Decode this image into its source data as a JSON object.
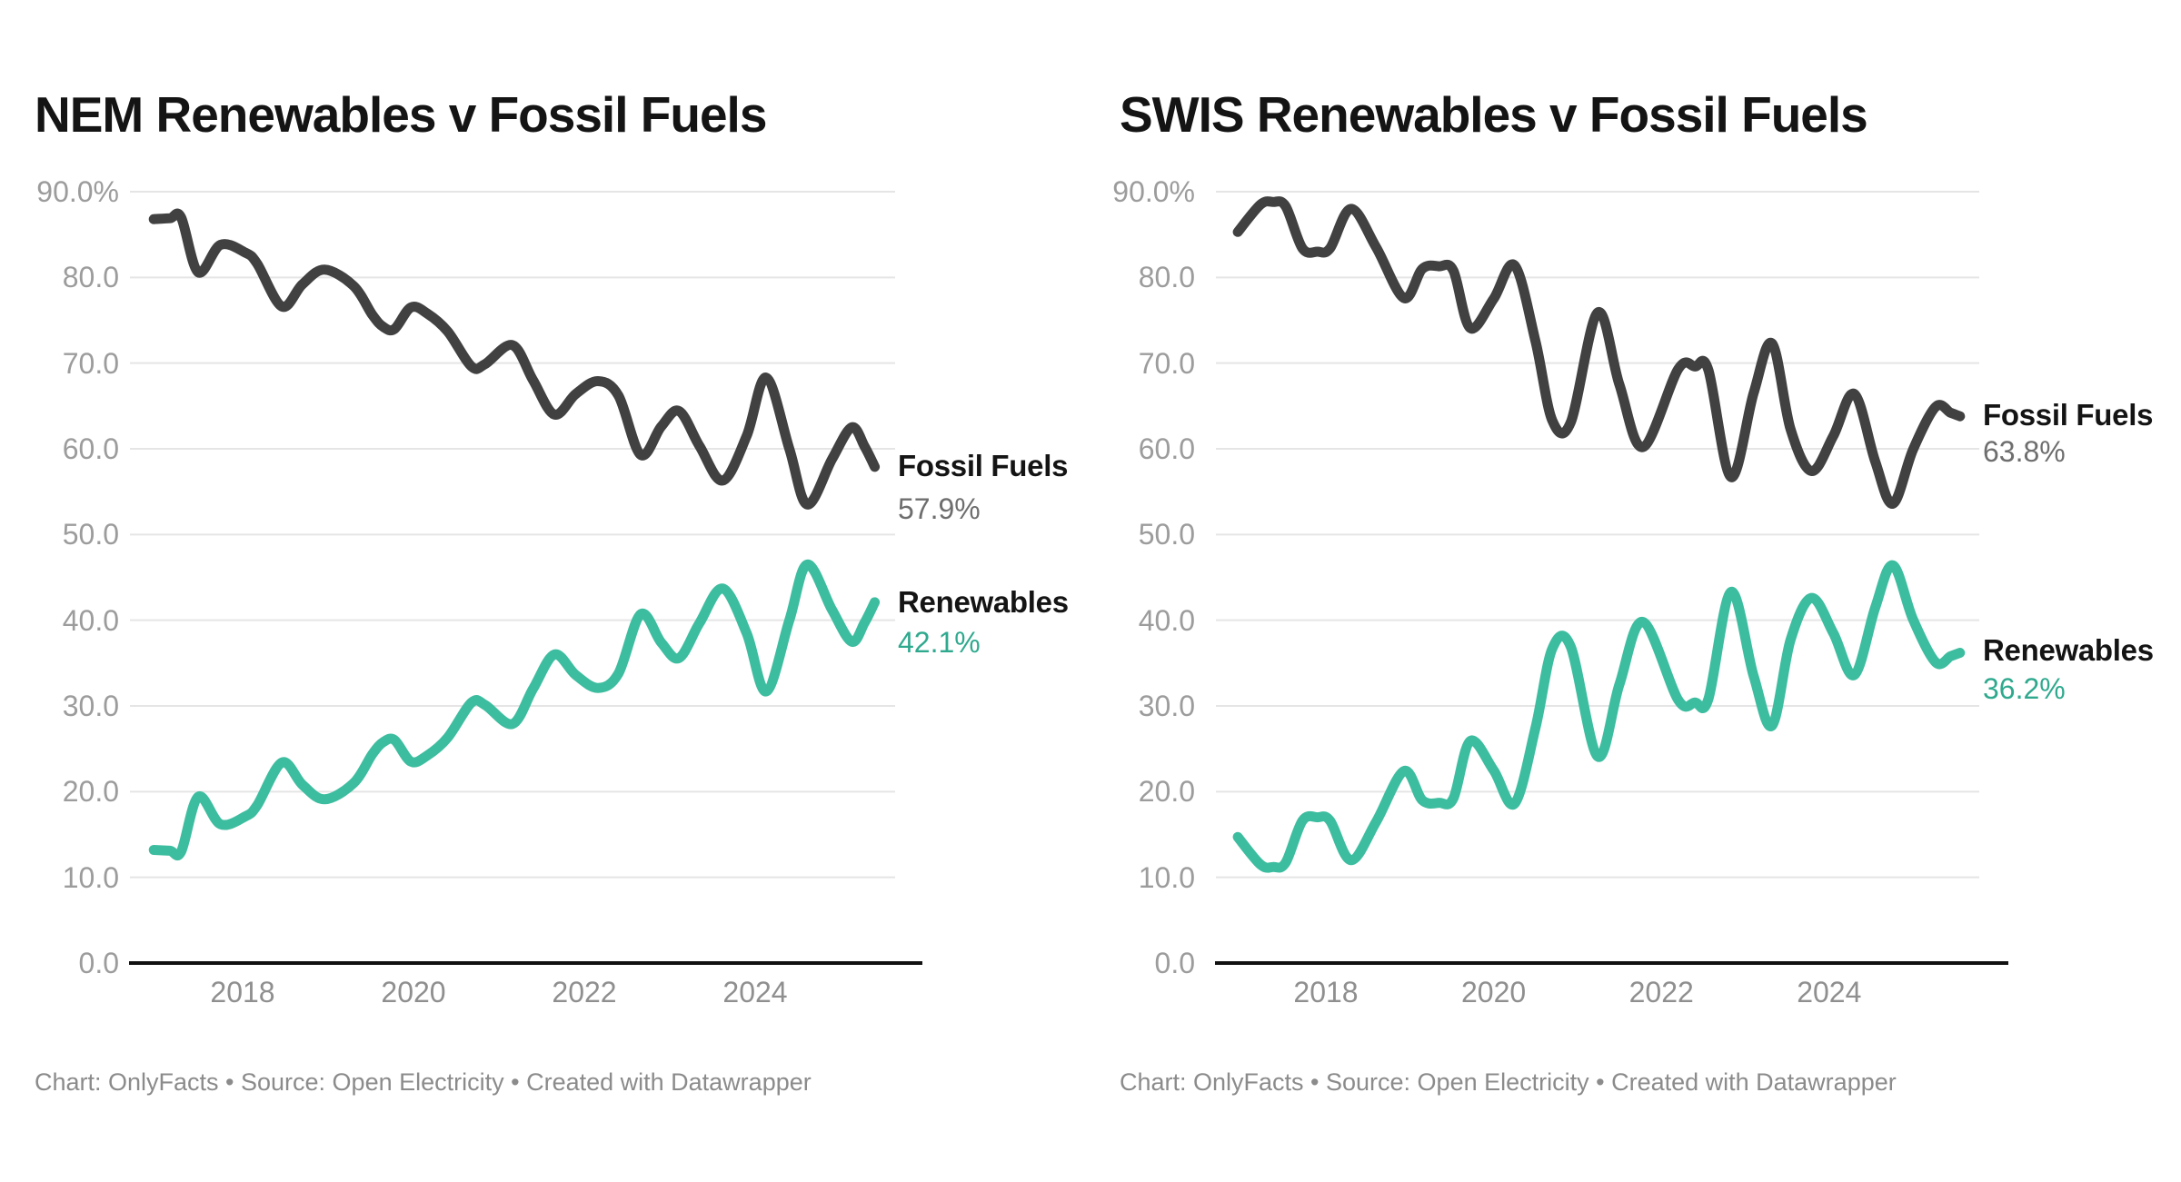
{
  "page": {
    "background": "#ffffff"
  },
  "colors": {
    "background": "#ffffff",
    "title_text": "#141414",
    "fossil_line": "#414141",
    "renewables_line": "#3dbd9f",
    "fossil_value_text": "#6e6e6e",
    "renewables_value_text": "#2fa98e",
    "series_name_text": "#141414",
    "grid_line": "#e5e5e5",
    "axis_line": "#111111",
    "y_tick_text": "#9c9c9c",
    "x_tick_text": "#8f8f8f",
    "footer_text": "#8b8b8b"
  },
  "charts": [
    {
      "id": "nem",
      "title": "NEM Renewables v Fossil Fuels",
      "footer": "Chart: OnlyFacts • Source: Open Electricity • Created with Datawrapper",
      "y_axis": {
        "tick_labels": [
          "90.0%",
          "80.0",
          "70.0",
          "60.0",
          "50.0",
          "40.0",
          "30.0",
          "20.0",
          "10.0",
          "0.0"
        ],
        "tick_values": [
          90,
          80,
          70,
          60,
          50,
          40,
          30,
          20,
          10,
          0
        ]
      },
      "x_axis": {
        "tick_labels": [
          "2018",
          "2020",
          "2022",
          "2024"
        ],
        "tick_years": [
          2018,
          2020,
          2022,
          2024
        ]
      },
      "series_labels": {
        "fossil": {
          "name": "Fossil Fuels",
          "value": "57.9%"
        },
        "renewables": {
          "name": "Renewables",
          "value": "42.1%"
        }
      }
    },
    {
      "id": "swis",
      "title": "SWIS Renewables v Fossil Fuels",
      "footer": "Chart: OnlyFacts • Source: Open Electricity • Created with Datawrapper",
      "y_axis": {
        "tick_labels": [
          "90.0%",
          "80.0",
          "70.0",
          "60.0",
          "50.0",
          "40.0",
          "30.0",
          "20.0",
          "10.0",
          "0.0"
        ],
        "tick_values": [
          90,
          80,
          70,
          60,
          50,
          40,
          30,
          20,
          10,
          0
        ]
      },
      "x_axis": {
        "tick_labels": [
          "2018",
          "2020",
          "2022",
          "2024"
        ],
        "tick_years": [
          2018,
          2020,
          2022,
          2024
        ]
      },
      "series_labels": {
        "fossil": {
          "name": "Fossil Fuels",
          "value": "63.8%"
        },
        "renewables": {
          "name": "Renewables",
          "value": "36.2%"
        }
      }
    }
  ],
  "chart_data": [
    {
      "type": "line",
      "title": "NEM Renewables v Fossil Fuels",
      "x_unit": "decimal_year",
      "y_unit": "percent_of_generation",
      "ylim": [
        0,
        90
      ],
      "yticks": [
        0,
        10,
        20,
        30,
        40,
        50,
        60,
        70,
        80,
        90
      ],
      "xticks": [
        2018,
        2020,
        2022,
        2024
      ],
      "x_range": [
        2016.95,
        2025.45
      ],
      "grid": true,
      "legend_position": "right-of-line-end",
      "series": [
        {
          "name": "Fossil Fuels",
          "end_value": 57.9,
          "points": [
            [
              2016.96,
              86.8
            ],
            [
              2017.15,
              86.9
            ],
            [
              2017.28,
              87.0
            ],
            [
              2017.48,
              80.6
            ],
            [
              2017.74,
              83.8
            ],
            [
              2018.03,
              82.9
            ],
            [
              2018.17,
              81.6
            ],
            [
              2018.46,
              76.6
            ],
            [
              2018.7,
              79.2
            ],
            [
              2018.96,
              80.9
            ],
            [
              2019.3,
              79.0
            ],
            [
              2019.52,
              75.6
            ],
            [
              2019.65,
              74.2
            ],
            [
              2019.78,
              74.0
            ],
            [
              2019.97,
              76.5
            ],
            [
              2020.16,
              75.8
            ],
            [
              2020.4,
              73.7
            ],
            [
              2020.68,
              69.6
            ],
            [
              2020.84,
              69.9
            ],
            [
              2021.16,
              72.1
            ],
            [
              2021.4,
              68.0
            ],
            [
              2021.65,
              64.0
            ],
            [
              2021.9,
              66.4
            ],
            [
              2022.16,
              67.9
            ],
            [
              2022.4,
              66.2
            ],
            [
              2022.66,
              59.3
            ],
            [
              2022.9,
              62.6
            ],
            [
              2023.11,
              64.4
            ],
            [
              2023.35,
              60.3
            ],
            [
              2023.62,
              56.3
            ],
            [
              2023.9,
              61.5
            ],
            [
              2024.13,
              68.3
            ],
            [
              2024.4,
              60.0
            ],
            [
              2024.61,
              53.5
            ],
            [
              2024.9,
              58.8
            ],
            [
              2025.13,
              62.5
            ],
            [
              2025.28,
              60.3
            ],
            [
              2025.4,
              57.9
            ]
          ]
        },
        {
          "name": "Renewables",
          "end_value": 42.1,
          "points": [
            [
              2016.96,
              13.2
            ],
            [
              2017.15,
              13.1
            ],
            [
              2017.28,
              13.0
            ],
            [
              2017.48,
              19.4
            ],
            [
              2017.74,
              16.2
            ],
            [
              2018.03,
              17.1
            ],
            [
              2018.17,
              18.4
            ],
            [
              2018.46,
              23.4
            ],
            [
              2018.7,
              20.8
            ],
            [
              2018.96,
              19.1
            ],
            [
              2019.3,
              21.0
            ],
            [
              2019.52,
              24.4
            ],
            [
              2019.65,
              25.8
            ],
            [
              2019.78,
              26.0
            ],
            [
              2019.97,
              23.5
            ],
            [
              2020.16,
              24.2
            ],
            [
              2020.4,
              26.3
            ],
            [
              2020.68,
              30.4
            ],
            [
              2020.84,
              30.1
            ],
            [
              2021.16,
              27.9
            ],
            [
              2021.4,
              32.0
            ],
            [
              2021.65,
              36.0
            ],
            [
              2021.9,
              33.6
            ],
            [
              2022.16,
              32.1
            ],
            [
              2022.4,
              33.8
            ],
            [
              2022.66,
              40.7
            ],
            [
              2022.9,
              37.4
            ],
            [
              2023.11,
              35.6
            ],
            [
              2023.35,
              39.7
            ],
            [
              2023.62,
              43.7
            ],
            [
              2023.9,
              38.5
            ],
            [
              2024.13,
              31.7
            ],
            [
              2024.4,
              40.0
            ],
            [
              2024.61,
              46.5
            ],
            [
              2024.9,
              41.2
            ],
            [
              2025.13,
              37.5
            ],
            [
              2025.28,
              39.7
            ],
            [
              2025.4,
              42.1
            ]
          ]
        }
      ]
    },
    {
      "type": "line",
      "title": "SWIS Renewables v Fossil Fuels",
      "x_unit": "decimal_year",
      "y_unit": "percent_of_generation",
      "ylim": [
        0,
        90
      ],
      "yticks": [
        0,
        10,
        20,
        30,
        40,
        50,
        60,
        70,
        80,
        90
      ],
      "xticks": [
        2018,
        2020,
        2022,
        2024
      ],
      "x_range": [
        2016.95,
        2025.56
      ],
      "grid": true,
      "legend_position": "right-of-line-end",
      "series": [
        {
          "name": "Fossil Fuels",
          "end_value": 63.8,
          "points": [
            [
              2016.95,
              85.3
            ],
            [
              2017.22,
              88.5
            ],
            [
              2017.37,
              88.8
            ],
            [
              2017.52,
              88.3
            ],
            [
              2017.72,
              83.4
            ],
            [
              2017.9,
              83.0
            ],
            [
              2018.05,
              83.4
            ],
            [
              2018.3,
              88.0
            ],
            [
              2018.6,
              83.5
            ],
            [
              2018.93,
              77.6
            ],
            [
              2019.15,
              81.0
            ],
            [
              2019.35,
              81.3
            ],
            [
              2019.52,
              80.8
            ],
            [
              2019.72,
              74.1
            ],
            [
              2020.0,
              77.5
            ],
            [
              2020.25,
              81.4
            ],
            [
              2020.5,
              72.5
            ],
            [
              2020.7,
              63.3
            ],
            [
              2020.92,
              63.1
            ],
            [
              2021.24,
              75.9
            ],
            [
              2021.5,
              67.5
            ],
            [
              2021.78,
              60.2
            ],
            [
              2022.2,
              69.3
            ],
            [
              2022.4,
              69.6
            ],
            [
              2022.56,
              69.2
            ],
            [
              2022.83,
              56.7
            ],
            [
              2023.1,
              66.5
            ],
            [
              2023.32,
              72.3
            ],
            [
              2023.54,
              62.3
            ],
            [
              2023.79,
              57.4
            ],
            [
              2024.05,
              61.5
            ],
            [
              2024.3,
              66.4
            ],
            [
              2024.55,
              58.5
            ],
            [
              2024.76,
              53.6
            ],
            [
              2025.0,
              59.9
            ],
            [
              2025.27,
              64.9
            ],
            [
              2025.45,
              64.2
            ],
            [
              2025.56,
              63.8
            ]
          ]
        },
        {
          "name": "Renewables",
          "end_value": 36.2,
          "points": [
            [
              2016.95,
              14.7
            ],
            [
              2017.22,
              11.5
            ],
            [
              2017.37,
              11.2
            ],
            [
              2017.52,
              11.7
            ],
            [
              2017.72,
              16.6
            ],
            [
              2017.9,
              17.0
            ],
            [
              2018.05,
              16.6
            ],
            [
              2018.3,
              12.0
            ],
            [
              2018.6,
              16.5
            ],
            [
              2018.93,
              22.4
            ],
            [
              2019.15,
              19.0
            ],
            [
              2019.35,
              18.7
            ],
            [
              2019.52,
              19.2
            ],
            [
              2019.72,
              25.9
            ],
            [
              2020.0,
              22.5
            ],
            [
              2020.25,
              18.6
            ],
            [
              2020.5,
              27.5
            ],
            [
              2020.7,
              36.7
            ],
            [
              2020.92,
              36.9
            ],
            [
              2021.24,
              24.1
            ],
            [
              2021.5,
              32.5
            ],
            [
              2021.78,
              39.8
            ],
            [
              2022.2,
              30.7
            ],
            [
              2022.4,
              30.4
            ],
            [
              2022.56,
              30.8
            ],
            [
              2022.83,
              43.3
            ],
            [
              2023.1,
              33.5
            ],
            [
              2023.32,
              27.7
            ],
            [
              2023.54,
              37.7
            ],
            [
              2023.79,
              42.6
            ],
            [
              2024.05,
              38.5
            ],
            [
              2024.3,
              33.6
            ],
            [
              2024.55,
              41.5
            ],
            [
              2024.76,
              46.4
            ],
            [
              2025.0,
              40.1
            ],
            [
              2025.27,
              35.1
            ],
            [
              2025.45,
              35.8
            ],
            [
              2025.56,
              36.2
            ]
          ]
        }
      ]
    }
  ]
}
